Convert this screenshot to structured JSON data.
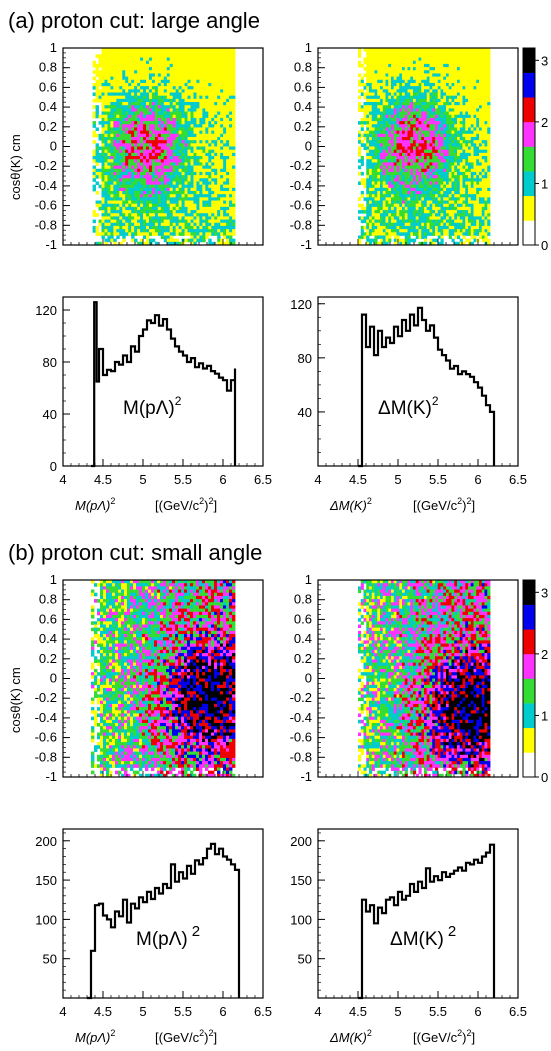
{
  "colors": {
    "scale": [
      "#ffffff",
      "#ffff00",
      "#00cccc",
      "#33dd33",
      "#ff33ff",
      "#ee0000",
      "#0000ee",
      "#000000"
    ],
    "line": "#000000"
  },
  "chart_data": [
    {
      "section": "(a) proton cut: large angle",
      "type": "heatmap",
      "ylabel": "cosθ(K)  cm",
      "ylim": [
        -1,
        1
      ],
      "xlim": [
        4,
        6.5
      ],
      "x_range_filled": [
        4.37,
        6.15
      ],
      "y_ticks": [
        "1",
        "0.8",
        "0.6",
        "0.4",
        "0.2",
        "0",
        "-0.2",
        "-0.4",
        "-0.6",
        "-0.8",
        "-1"
      ],
      "hot_spot": {
        "x": 5.05,
        "y": 0.05
      },
      "dominant": "low"
    },
    {
      "section": "(a) proton cut: large angle",
      "type": "heatmap",
      "ylim": [
        -1,
        1
      ],
      "xlim": [
        4,
        6.5
      ],
      "x_range_filled": [
        4.5,
        6.15
      ],
      "y_ticks": [
        "1",
        "0.8",
        "0.6",
        "0.4",
        "0.2",
        "0",
        "-0.2",
        "-0.4",
        "-0.6",
        "-0.8",
        "-1"
      ],
      "colorbar": {
        "range": [
          0,
          3.2
        ],
        "tick_labels": [
          "3",
          "2",
          "1",
          "0"
        ]
      },
      "hot_spot": {
        "x": 5.2,
        "y": 0.05
      },
      "dominant": "low"
    },
    {
      "section": "(a) proton cut: large angle",
      "type": "line",
      "annotation": "M(pΛ)",
      "annotation_sup": "2",
      "xlabel_main": "M(pΛ)",
      "xlabel_sup": "2",
      "xlabel_unit": "[(GeV/c",
      "xlabel_unit_sup": "2",
      "xlabel_unit_end": ")",
      "xlabel_unit_end_sup": "2",
      "xlabel_close": "]",
      "xlim": [
        4,
        6.5
      ],
      "ylim": [
        0,
        130
      ],
      "x_ticks": [
        "4",
        "4.5",
        "5",
        "5.5",
        "6",
        "6.5"
      ],
      "y_ticks": [
        "0",
        "40",
        "80",
        "120"
      ],
      "x": [
        4.35,
        4.39,
        4.42,
        4.45,
        4.5,
        4.55,
        4.6,
        4.65,
        4.7,
        4.75,
        4.8,
        4.85,
        4.9,
        4.95,
        5.0,
        5.05,
        5.1,
        5.15,
        5.2,
        5.25,
        5.3,
        5.35,
        5.4,
        5.45,
        5.5,
        5.55,
        5.6,
        5.65,
        5.7,
        5.75,
        5.8,
        5.85,
        5.9,
        5.95,
        6.0,
        6.05,
        6.1,
        6.15
      ],
      "y": [
        0,
        126,
        65,
        90,
        70,
        74,
        73,
        80,
        78,
        85,
        80,
        92,
        88,
        100,
        105,
        112,
        110,
        116,
        108,
        113,
        105,
        98,
        92,
        88,
        85,
        80,
        83,
        76,
        79,
        75,
        77,
        73,
        71,
        68,
        66,
        58,
        66,
        75
      ]
    },
    {
      "section": "(a) proton cut: large angle",
      "type": "line",
      "annotation": "ΔM(K)",
      "annotation_sup": "2",
      "xlabel_main": "ΔM(K)",
      "xlabel_sup": "2",
      "xlabel_unit": "[(GeV/c",
      "xlabel_unit_sup": "2",
      "xlabel_unit_end": ")",
      "xlabel_unit_end_sup": "2",
      "xlabel_close": "]",
      "xlim": [
        4,
        6.5
      ],
      "ylim": [
        0,
        125
      ],
      "x_ticks": [
        "4",
        "4.5",
        "5",
        "5.5",
        "6",
        "6.5"
      ],
      "y_ticks": [
        "40",
        "80",
        "120"
      ],
      "x": [
        4.5,
        4.55,
        4.6,
        4.65,
        4.7,
        4.75,
        4.8,
        4.85,
        4.9,
        4.95,
        5.0,
        5.05,
        5.1,
        5.15,
        5.2,
        5.25,
        5.3,
        5.35,
        5.4,
        5.45,
        5.5,
        5.55,
        5.6,
        5.65,
        5.7,
        5.75,
        5.8,
        5.85,
        5.9,
        5.95,
        6.0,
        6.05,
        6.1,
        6.15,
        6.2
      ],
      "y": [
        0,
        112,
        88,
        103,
        82,
        100,
        88,
        95,
        91,
        103,
        96,
        108,
        100,
        112,
        104,
        117,
        108,
        100,
        104,
        95,
        86,
        82,
        78,
        72,
        74,
        68,
        70,
        68,
        66,
        62,
        58,
        52,
        45,
        40,
        0
      ]
    },
    {
      "section": "(b) proton cut: small angle",
      "type": "heatmap",
      "ylabel": "cosθ(K)  cm",
      "ylim": [
        -1,
        1
      ],
      "xlim": [
        4,
        6.5
      ],
      "x_range_filled": [
        4.35,
        6.15
      ],
      "y_ticks": [
        "1",
        "0.8",
        "0.6",
        "0.4",
        "0.2",
        "0",
        "-0.2",
        "-0.4",
        "-0.6",
        "-0.8",
        "-1"
      ],
      "hot_spot": {
        "x": 5.75,
        "y": -0.2
      },
      "dominant": "high"
    },
    {
      "section": "(b) proton cut: small angle",
      "type": "heatmap",
      "ylim": [
        -1,
        1
      ],
      "xlim": [
        4,
        6.5
      ],
      "x_range_filled": [
        4.5,
        6.15
      ],
      "y_ticks": [
        "1",
        "0.8",
        "0.6",
        "0.4",
        "0.2",
        "0",
        "-0.2",
        "-0.4",
        "-0.6",
        "-0.8",
        "-1"
      ],
      "colorbar": {
        "range": [
          0,
          3.2
        ],
        "tick_labels": [
          "3",
          "2",
          "1",
          "0"
        ]
      },
      "hot_spot": {
        "x": 5.85,
        "y": -0.3
      },
      "dominant": "high"
    },
    {
      "section": "(b) proton cut: small angle",
      "type": "line",
      "annotation": "M(pΛ)",
      "annotation_sup": "2",
      "xlabel_main": "M(pΛ)",
      "xlabel_sup": "2",
      "xlabel_unit": "[(GeV/c",
      "xlabel_unit_sup": "2",
      "xlabel_unit_end": ")",
      "xlabel_unit_end_sup": "2",
      "xlabel_close": "]",
      "xlim": [
        4,
        6.5
      ],
      "ylim": [
        0,
        215
      ],
      "x_ticks": [
        "4",
        "4.5",
        "5",
        "5.5",
        "6",
        "6.5"
      ],
      "y_ticks": [
        "50",
        "100",
        "150",
        "200"
      ],
      "x": [
        4.3,
        4.35,
        4.4,
        4.45,
        4.5,
        4.55,
        4.6,
        4.65,
        4.7,
        4.75,
        4.8,
        4.85,
        4.9,
        4.95,
        5.0,
        5.05,
        5.1,
        5.15,
        5.2,
        5.25,
        5.3,
        5.35,
        5.4,
        5.45,
        5.5,
        5.55,
        5.6,
        5.65,
        5.7,
        5.75,
        5.8,
        5.85,
        5.9,
        5.95,
        6.0,
        6.05,
        6.1,
        6.15,
        6.2
      ],
      "y": [
        0,
        60,
        118,
        120,
        105,
        100,
        90,
        110,
        104,
        125,
        96,
        120,
        114,
        128,
        122,
        135,
        126,
        140,
        133,
        145,
        140,
        170,
        148,
        160,
        152,
        168,
        158,
        175,
        170,
        178,
        190,
        196,
        183,
        190,
        180,
        176,
        170,
        163,
        0
      ]
    },
    {
      "section": "(b) proton cut: small angle",
      "type": "line",
      "annotation": "ΔM(K)",
      "annotation_sup": "2",
      "xlabel_main": "ΔM(K)",
      "xlabel_sup": "2",
      "xlabel_unit": "[(GeV/c",
      "xlabel_unit_sup": "2",
      "xlabel_unit_end": ")",
      "xlabel_unit_end_sup": "2",
      "xlabel_close": "]",
      "xlim": [
        4,
        6.5
      ],
      "ylim": [
        0,
        215
      ],
      "x_ticks": [
        "4",
        "4.5",
        "5",
        "5.5",
        "6",
        "6.5"
      ],
      "y_ticks": [
        "50",
        "100",
        "150",
        "200"
      ],
      "x": [
        4.5,
        4.55,
        4.6,
        4.65,
        4.7,
        4.75,
        4.8,
        4.85,
        4.9,
        4.95,
        5.0,
        5.05,
        5.1,
        5.15,
        5.2,
        5.25,
        5.3,
        5.35,
        5.4,
        5.45,
        5.5,
        5.55,
        5.6,
        5.65,
        5.7,
        5.75,
        5.8,
        5.85,
        5.9,
        5.95,
        6.0,
        6.05,
        6.1,
        6.15,
        6.2
      ],
      "y": [
        0,
        125,
        110,
        118,
        95,
        115,
        108,
        125,
        128,
        118,
        135,
        125,
        130,
        145,
        135,
        148,
        140,
        165,
        148,
        155,
        150,
        160,
        154,
        158,
        162,
        166,
        162,
        172,
        170,
        176,
        172,
        180,
        185,
        195,
        0
      ]
    }
  ]
}
